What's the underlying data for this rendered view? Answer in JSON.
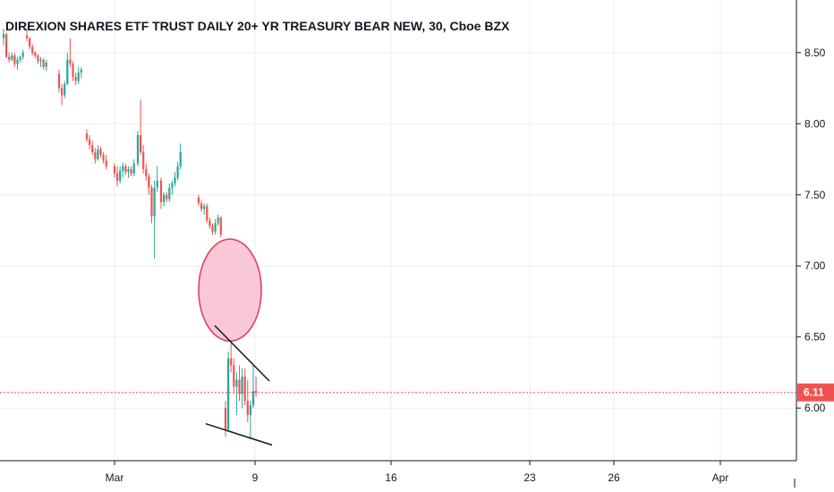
{
  "chart_data": {
    "type": "candlestick",
    "title": "DIREXION SHARES ETF TRUST DAILY 20+ YR TREASURY BEAR NEW, 30, Cboe BZX",
    "ylim": [
      5.63,
      8.87
    ],
    "y_ticks": [
      {
        "value": 8.5,
        "label": "8.50"
      },
      {
        "value": 8.0,
        "label": "8.00"
      },
      {
        "value": 7.5,
        "label": "7.50"
      },
      {
        "value": 7.0,
        "label": "7.00"
      },
      {
        "value": 6.5,
        "label": "6.50"
      },
      {
        "value": 6.0,
        "label": "6.00"
      }
    ],
    "x_ticks": [
      "Mar",
      "9",
      "16",
      "23",
      "26",
      "Apr"
    ],
    "last_price": {
      "value": 6.11,
      "label": "6.11"
    },
    "grid": true,
    "colors": {
      "up": "#26a69a",
      "down": "#ef5350",
      "last_price_line": "#ef5350",
      "grid": "#e8edf2"
    },
    "candles": [
      {
        "o": 8.6,
        "h": 8.67,
        "l": 8.55,
        "c": 8.63
      },
      {
        "o": 8.63,
        "h": 8.64,
        "l": 8.46,
        "c": 8.47
      },
      {
        "o": 8.47,
        "h": 8.5,
        "l": 8.43,
        "c": 8.45
      },
      {
        "o": 8.45,
        "h": 8.5,
        "l": 8.44,
        "c": 8.48
      },
      {
        "o": 8.48,
        "h": 8.5,
        "l": 8.4,
        "c": 8.42
      },
      {
        "o": 8.42,
        "h": 8.47,
        "l": 8.38,
        "c": 8.45
      },
      {
        "o": 8.45,
        "h": 8.48,
        "l": 8.43,
        "c": 8.47
      },
      {
        "o": 8.47,
        "h": 8.52,
        "l": 8.45,
        "c": 8.5
      },
      {
        "o": 8.62,
        "h": 8.67,
        "l": 8.58,
        "c": 8.6
      },
      {
        "o": 8.6,
        "h": 8.61,
        "l": 8.52,
        "c": 8.54
      },
      {
        "o": 8.54,
        "h": 8.56,
        "l": 8.48,
        "c": 8.5
      },
      {
        "o": 8.5,
        "h": 8.51,
        "l": 8.46,
        "c": 8.48
      },
      {
        "o": 8.48,
        "h": 8.49,
        "l": 8.42,
        "c": 8.44
      },
      {
        "o": 8.44,
        "h": 8.47,
        "l": 8.4,
        "c": 8.45
      },
      {
        "o": 8.45,
        "h": 8.46,
        "l": 8.38,
        "c": 8.4
      },
      {
        "o": 8.4,
        "h": 8.45,
        "l": 8.37,
        "c": 8.43
      },
      {
        "o": 8.35,
        "h": 8.38,
        "l": 8.22,
        "c": 8.25
      },
      {
        "o": 8.25,
        "h": 8.28,
        "l": 8.13,
        "c": 8.2
      },
      {
        "o": 8.2,
        "h": 8.3,
        "l": 8.18,
        "c": 8.28
      },
      {
        "o": 8.28,
        "h": 8.5,
        "l": 8.27,
        "c": 8.45
      },
      {
        "o": 8.45,
        "h": 8.6,
        "l": 8.4,
        "c": 8.42
      },
      {
        "o": 8.42,
        "h": 8.44,
        "l": 8.3,
        "c": 8.33
      },
      {
        "o": 8.33,
        "h": 8.36,
        "l": 8.27,
        "c": 8.3
      },
      {
        "o": 8.3,
        "h": 8.4,
        "l": 8.28,
        "c": 8.36
      },
      {
        "o": 8.36,
        "h": 8.4,
        "l": 8.32,
        "c": 8.38
      },
      {
        "o": 7.93,
        "h": 7.96,
        "l": 7.87,
        "c": 7.89
      },
      {
        "o": 7.89,
        "h": 7.92,
        "l": 7.82,
        "c": 7.85
      },
      {
        "o": 7.85,
        "h": 7.88,
        "l": 7.78,
        "c": 7.8
      },
      {
        "o": 7.8,
        "h": 7.83,
        "l": 7.72,
        "c": 7.75
      },
      {
        "o": 7.75,
        "h": 7.85,
        "l": 7.74,
        "c": 7.82
      },
      {
        "o": 7.82,
        "h": 7.84,
        "l": 7.76,
        "c": 7.78
      },
      {
        "o": 7.78,
        "h": 7.8,
        "l": 7.72,
        "c": 7.74
      },
      {
        "o": 7.74,
        "h": 7.78,
        "l": 7.68,
        "c": 7.7
      },
      {
        "o": 7.7,
        "h": 7.72,
        "l": 7.62,
        "c": 7.65
      },
      {
        "o": 7.65,
        "h": 7.7,
        "l": 7.56,
        "c": 7.6
      },
      {
        "o": 7.6,
        "h": 7.7,
        "l": 7.58,
        "c": 7.67
      },
      {
        "o": 7.67,
        "h": 7.73,
        "l": 7.62,
        "c": 7.7
      },
      {
        "o": 7.7,
        "h": 7.72,
        "l": 7.64,
        "c": 7.66
      },
      {
        "o": 7.66,
        "h": 7.7,
        "l": 7.62,
        "c": 7.68
      },
      {
        "o": 7.68,
        "h": 7.7,
        "l": 7.63,
        "c": 7.65
      },
      {
        "o": 7.65,
        "h": 7.75,
        "l": 7.63,
        "c": 7.72
      },
      {
        "o": 7.72,
        "h": 7.95,
        "l": 7.7,
        "c": 7.92
      },
      {
        "o": 7.92,
        "h": 8.17,
        "l": 7.78,
        "c": 7.8
      },
      {
        "o": 7.8,
        "h": 7.85,
        "l": 7.65,
        "c": 7.68
      },
      {
        "o": 7.68,
        "h": 7.72,
        "l": 7.6,
        "c": 7.63
      },
      {
        "o": 7.63,
        "h": 7.65,
        "l": 7.5,
        "c": 7.55
      },
      {
        "o": 7.55,
        "h": 7.57,
        "l": 7.3,
        "c": 7.35
      },
      {
        "o": 7.35,
        "h": 7.6,
        "l": 7.05,
        "c": 7.55
      },
      {
        "o": 7.55,
        "h": 7.7,
        "l": 7.52,
        "c": 7.6
      },
      {
        "o": 7.6,
        "h": 7.62,
        "l": 7.4,
        "c": 7.45
      },
      {
        "o": 7.45,
        "h": 7.52,
        "l": 7.42,
        "c": 7.5
      },
      {
        "o": 7.5,
        "h": 7.52,
        "l": 7.45,
        "c": 7.47
      },
      {
        "o": 7.47,
        "h": 7.58,
        "l": 7.45,
        "c": 7.55
      },
      {
        "o": 7.55,
        "h": 7.6,
        "l": 7.5,
        "c": 7.58
      },
      {
        "o": 7.58,
        "h": 7.66,
        "l": 7.56,
        "c": 7.62
      },
      {
        "o": 7.62,
        "h": 7.73,
        "l": 7.6,
        "c": 7.7
      },
      {
        "o": 7.7,
        "h": 7.86,
        "l": 7.68,
        "c": 7.8
      },
      {
        "o": 7.48,
        "h": 7.5,
        "l": 7.42,
        "c": 7.44
      },
      {
        "o": 7.44,
        "h": 7.46,
        "l": 7.38,
        "c": 7.4
      },
      {
        "o": 7.4,
        "h": 7.44,
        "l": 7.36,
        "c": 7.42
      },
      {
        "o": 7.42,
        "h": 7.44,
        "l": 7.3,
        "c": 7.32
      },
      {
        "o": 7.32,
        "h": 7.34,
        "l": 7.26,
        "c": 7.28
      },
      {
        "o": 7.28,
        "h": 7.3,
        "l": 7.22,
        "c": 7.24
      },
      {
        "o": 7.24,
        "h": 7.33,
        "l": 7.22,
        "c": 7.3
      },
      {
        "o": 7.3,
        "h": 7.36,
        "l": 7.28,
        "c": 7.34
      },
      {
        "o": 7.34,
        "h": 7.35,
        "l": 7.2,
        "c": 7.22
      },
      {
        "o": 6.0,
        "h": 6.05,
        "l": 5.8,
        "c": 5.85
      },
      {
        "o": 5.85,
        "h": 6.4,
        "l": 5.83,
        "c": 6.35
      },
      {
        "o": 6.35,
        "h": 6.47,
        "l": 6.25,
        "c": 6.3
      },
      {
        "o": 6.3,
        "h": 6.35,
        "l": 6.1,
        "c": 6.15
      },
      {
        "o": 6.15,
        "h": 6.25,
        "l": 5.95,
        "c": 6.2
      },
      {
        "o": 6.2,
        "h": 6.3,
        "l": 6.05,
        "c": 6.1
      },
      {
        "o": 6.1,
        "h": 6.28,
        "l": 6.0,
        "c": 6.22
      },
      {
        "o": 6.22,
        "h": 6.28,
        "l": 6.02,
        "c": 6.05
      },
      {
        "o": 6.05,
        "h": 6.2,
        "l": 5.9,
        "c": 5.95
      },
      {
        "o": 5.95,
        "h": 6.05,
        "l": 5.78,
        "c": 6.02
      },
      {
        "o": 6.02,
        "h": 6.3,
        "l": 6.0,
        "c": 6.12
      },
      {
        "o": 6.12,
        "h": 6.22,
        "l": 6.08,
        "c": 6.11
      }
    ],
    "annotations": [
      {
        "type": "ellipse",
        "center_value": 6.83,
        "fill": "#f8c8d8",
        "stroke": "#e53950"
      },
      {
        "type": "trendline",
        "from_value": 6.58,
        "to_value": 6.19,
        "color": "#131722"
      },
      {
        "type": "trendline",
        "from_value": 5.89,
        "to_value": 5.74,
        "color": "#131722"
      }
    ]
  }
}
